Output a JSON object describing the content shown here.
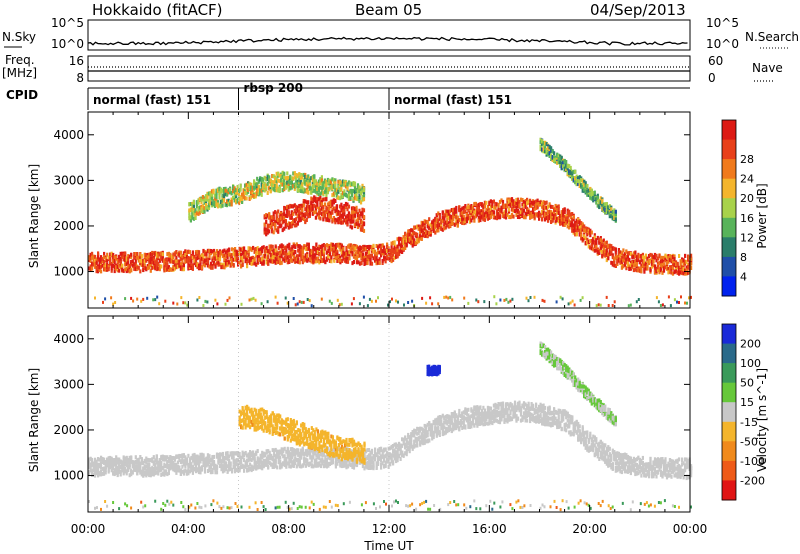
{
  "header": {
    "station": "Hokkaido (fitACF)",
    "beam": "Beam 05",
    "date": "04/Sep/2013"
  },
  "strip": {
    "nsky_label": "N.Sky",
    "nsearch_label": "N.Search",
    "freq_label_line1": "Freq.",
    "freq_label_line2": "[MHz]",
    "nave_label": "Nave",
    "cpid_label": "CPID",
    "noise_left_ticks": [
      "10^5",
      "10^0"
    ],
    "noise_right_ticks": [
      "10^5",
      "10^0"
    ],
    "freq_left_ticks": [
      "16",
      "8"
    ],
    "freq_right_ticks": [
      "60",
      "0"
    ]
  },
  "cpid_segments": [
    {
      "start_hour": 0.0,
      "end_hour": 6.0,
      "label": "normal (fast) 151"
    },
    {
      "start_hour": 6.0,
      "end_hour": 12.0,
      "label": "rbsp 200"
    },
    {
      "start_hour": 12.0,
      "end_hour": 24.0,
      "label": "normal (fast) 151"
    }
  ],
  "chart_data": [
    {
      "type": "heatmap",
      "name": "power",
      "ylabel": "Slant Range [km]",
      "xlabel": "",
      "x_unit": "hour UT",
      "xlim": [
        0,
        24
      ],
      "ylim": [
        200,
        4500
      ],
      "yticks": [
        1000,
        2000,
        3000,
        4000
      ],
      "colorbar": {
        "label": "Power [dB]",
        "ticks": [
          "4",
          "8",
          "12",
          "16",
          "20",
          "24",
          "28"
        ],
        "colors": [
          "#0022ee",
          "#1f4fa8",
          "#2a7d6a",
          "#58b35a",
          "#a8d24a",
          "#f4b52c",
          "#f07a1c",
          "#e8401a",
          "#dd1a14"
        ],
        "range": [
          0,
          30
        ]
      },
      "bands": [
        {
          "hours": [
            0,
            2,
            4,
            6,
            8,
            10,
            11,
            12,
            13,
            14,
            15,
            16,
            17,
            18,
            19,
            20,
            21,
            22,
            23,
            24
          ],
          "range_km": [
            1200,
            1200,
            1250,
            1300,
            1400,
            1400,
            1350,
            1400,
            1800,
            2100,
            2250,
            2350,
            2400,
            2350,
            2200,
            1700,
            1300,
            1200,
            1150,
            1150
          ],
          "width_km": 250,
          "power_db": 25
        },
        {
          "hours": [
            4,
            5,
            6,
            7,
            8,
            9,
            10,
            11
          ],
          "range_km": [
            2300,
            2600,
            2700,
            2900,
            3000,
            2900,
            2800,
            2700
          ],
          "width_km": 250,
          "power_db": 15
        },
        {
          "hours": [
            7,
            8,
            9,
            10,
            11
          ],
          "range_km": [
            2000,
            2200,
            2400,
            2300,
            2100
          ],
          "width_km": 300,
          "power_db": 26
        },
        {
          "hours": [
            18,
            19,
            20,
            21
          ],
          "range_km": [
            3800,
            3300,
            2700,
            2200
          ],
          "width_km": 150,
          "power_db": 12
        }
      ]
    },
    {
      "type": "heatmap",
      "name": "velocity",
      "ylabel": "Slant Range [km]",
      "xlabel": "Time UT",
      "x_unit": "hour UT",
      "xlim": [
        0,
        24
      ],
      "ylim": [
        200,
        4500
      ],
      "yticks": [
        1000,
        2000,
        3000,
        4000
      ],
      "xticks": [
        "00:00",
        "04:00",
        "08:00",
        "12:00",
        "16:00",
        "20:00",
        "00:00"
      ],
      "colorbar": {
        "label": "Velocity [m s^-1]",
        "ticks": [
          "200",
          "100",
          "50",
          "15",
          "-15",
          "-50",
          "-100",
          "-200"
        ],
        "colors": [
          "#1a2ad8",
          "#2a6a8a",
          "#3a9a5a",
          "#66c83a",
          "#c8c8c8",
          "#f4b52c",
          "#f08a1c",
          "#ee5a18",
          "#e01414"
        ],
        "range": [
          -250,
          250
        ]
      },
      "bands": [
        {
          "hours": [
            0,
            2,
            4,
            6,
            8,
            10,
            11,
            12,
            13,
            14,
            15,
            16,
            17,
            18,
            19,
            20,
            21,
            22,
            23,
            24
          ],
          "range_km": [
            1200,
            1200,
            1250,
            1300,
            1400,
            1400,
            1350,
            1400,
            1800,
            2100,
            2250,
            2350,
            2400,
            2350,
            2200,
            1700,
            1300,
            1200,
            1150,
            1150
          ],
          "width_km": 260,
          "velocity": 0
        },
        {
          "hours": [
            6,
            7,
            8,
            9,
            10,
            11
          ],
          "range_km": [
            2300,
            2200,
            2000,
            1800,
            1600,
            1500
          ],
          "width_km": 300,
          "velocity": -60
        },
        {
          "hours": [
            13.5,
            14.0
          ],
          "range_km": [
            3300,
            3300
          ],
          "width_km": 120,
          "velocity": 220
        },
        {
          "hours": [
            18,
            19,
            20,
            21
          ],
          "range_km": [
            3800,
            3300,
            2700,
            2200
          ],
          "width_km": 150,
          "velocity": 30
        }
      ]
    }
  ]
}
